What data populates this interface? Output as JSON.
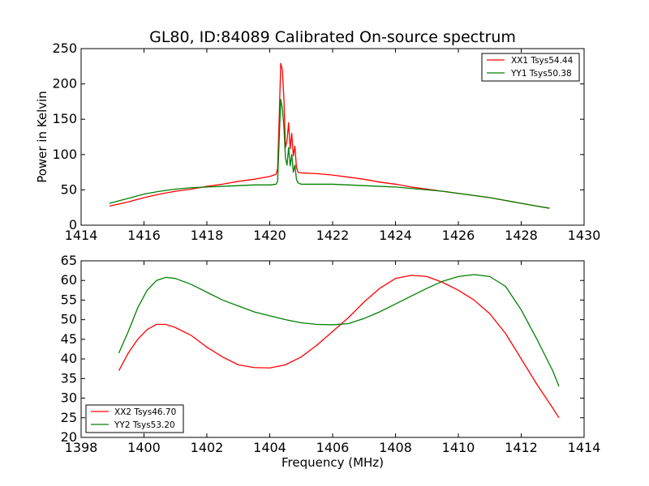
{
  "chart_data": [
    {
      "type": "line",
      "title": "GL80, ID:84089 Calibrated On-source spectrum",
      "xlabel": "",
      "ylabel": "Power in Kelvin",
      "xlim": [
        1414,
        1430
      ],
      "ylim": [
        0,
        250
      ],
      "xticks": [
        "1414",
        "1416",
        "1418",
        "1420",
        "1422",
        "1424",
        "1426",
        "1428",
        "1430"
      ],
      "yticks": [
        "0",
        "50",
        "100",
        "150",
        "200",
        "250"
      ],
      "legend": "top-right",
      "series": [
        {
          "name": "XX1 Tsys54.44",
          "color": "#ff0000",
          "x": [
            1414.9,
            1415.5,
            1416.0,
            1416.5,
            1417.0,
            1417.5,
            1418.0,
            1418.5,
            1419.0,
            1419.5,
            1420.0,
            1420.2,
            1420.25,
            1420.3,
            1420.35,
            1420.4,
            1420.45,
            1420.5,
            1420.55,
            1420.6,
            1420.65,
            1420.7,
            1420.75,
            1420.8,
            1420.85,
            1420.9,
            1421.0,
            1421.5,
            1422.0,
            1422.5,
            1423.0,
            1423.5,
            1424.0,
            1424.5,
            1425.0,
            1425.5,
            1426.0,
            1426.5,
            1427.0,
            1427.5,
            1428.0,
            1428.5,
            1428.9
          ],
          "y": [
            27,
            33,
            39,
            44,
            48,
            51,
            55,
            58,
            62,
            65,
            69,
            72,
            80,
            150,
            229,
            220,
            180,
            110,
            120,
            145,
            108,
            130,
            98,
            112,
            82,
            75,
            74,
            73,
            71,
            68,
            65,
            61,
            58,
            54,
            51,
            48,
            45,
            42,
            39,
            35,
            31,
            27,
            24
          ]
        },
        {
          "name": "YY1 Tsys50.38",
          "color": "#008000",
          "x": [
            1414.9,
            1415.5,
            1416.0,
            1416.5,
            1417.0,
            1417.5,
            1418.0,
            1418.5,
            1419.0,
            1419.5,
            1420.0,
            1420.2,
            1420.25,
            1420.3,
            1420.35,
            1420.4,
            1420.45,
            1420.5,
            1420.55,
            1420.6,
            1420.65,
            1420.7,
            1420.75,
            1420.8,
            1420.85,
            1420.9,
            1421.0,
            1421.5,
            1422.0,
            1422.5,
            1423.0,
            1423.5,
            1424.0,
            1424.5,
            1425.0,
            1425.5,
            1426.0,
            1426.5,
            1427.0,
            1427.5,
            1428.0,
            1428.5,
            1428.9
          ],
          "y": [
            31,
            38,
            44,
            48,
            51,
            53,
            54,
            55,
            56,
            57,
            57,
            58,
            62,
            120,
            178,
            165,
            140,
            95,
            85,
            110,
            84,
            100,
            75,
            85,
            65,
            60,
            58,
            58,
            58,
            57,
            56,
            55,
            54,
            52,
            50,
            48,
            45,
            42,
            39,
            35,
            31,
            27,
            24
          ]
        }
      ]
    },
    {
      "type": "line",
      "title": "",
      "xlabel": "Frequency (MHz)",
      "ylabel": "",
      "xlim": [
        1398,
        1414
      ],
      "ylim": [
        20,
        65
      ],
      "xticks": [
        "1398",
        "1400",
        "1402",
        "1404",
        "1406",
        "1408",
        "1410",
        "1412",
        "1414"
      ],
      "yticks": [
        "20",
        "25",
        "30",
        "35",
        "40",
        "45",
        "50",
        "55",
        "60",
        "65"
      ],
      "legend": "bottom-left",
      "series": [
        {
          "name": "XX2 Tsys46.70",
          "color": "#ff0000",
          "x": [
            1399.2,
            1399.5,
            1399.8,
            1400.1,
            1400.4,
            1400.7,
            1401.0,
            1401.5,
            1402.0,
            1402.5,
            1403.0,
            1403.5,
            1404.0,
            1404.5,
            1405.0,
            1405.5,
            1406.0,
            1406.5,
            1407.0,
            1407.5,
            1408.0,
            1408.5,
            1409.0,
            1409.5,
            1410.0,
            1410.5,
            1411.0,
            1411.5,
            1412.0,
            1412.5,
            1413.0,
            1413.2
          ],
          "y": [
            37,
            41.5,
            45,
            47.5,
            48.8,
            48.8,
            48,
            46,
            43,
            40.5,
            38.5,
            37.8,
            37.7,
            38.5,
            40.5,
            43.5,
            47,
            50.5,
            54.5,
            58,
            60.5,
            61.3,
            61,
            59.5,
            57.5,
            55,
            51.5,
            46.5,
            40,
            33.5,
            27.5,
            25
          ]
        },
        {
          "name": "YY2 Tsys53.20",
          "color": "#008000",
          "x": [
            1399.2,
            1399.5,
            1399.8,
            1400.1,
            1400.4,
            1400.7,
            1401.0,
            1401.5,
            1402.0,
            1402.5,
            1403.0,
            1403.5,
            1404.0,
            1404.5,
            1405.0,
            1405.5,
            1406.0,
            1406.5,
            1407.0,
            1407.5,
            1408.0,
            1408.5,
            1409.0,
            1409.5,
            1410.0,
            1410.5,
            1411.0,
            1411.5,
            1412.0,
            1412.5,
            1413.0,
            1413.2
          ],
          "y": [
            41.5,
            47,
            53,
            57.5,
            60,
            60.8,
            60.5,
            59,
            57,
            55,
            53.5,
            52,
            51,
            50,
            49.2,
            48.8,
            48.7,
            49,
            50.3,
            52,
            54,
            56,
            58,
            59.8,
            61,
            61.5,
            61,
            58.5,
            52.5,
            45,
            37,
            33
          ]
        }
      ]
    }
  ]
}
